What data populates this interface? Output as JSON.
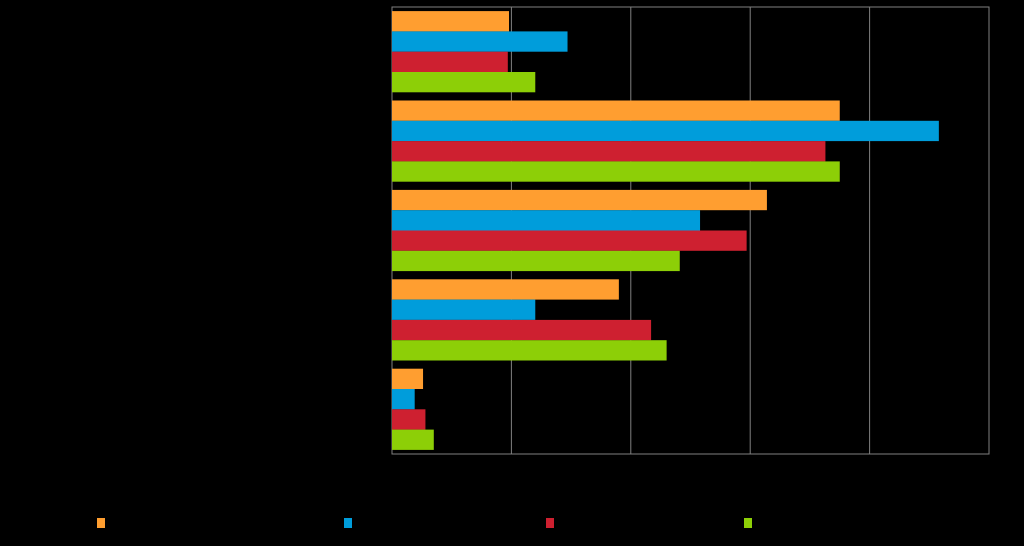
{
  "chart_data": {
    "type": "bar",
    "orientation": "horizontal",
    "categories": [
      "",
      "",
      "",
      "",
      ""
    ],
    "series": [
      {
        "color": "#FF9E30",
        "values": [
          9.8,
          37.5,
          31.4,
          19.0,
          2.6
        ]
      },
      {
        "color": "#009DDB",
        "values": [
          14.7,
          45.8,
          25.8,
          12.0,
          1.9
        ]
      },
      {
        "color": "#CE2030",
        "values": [
          9.7,
          36.3,
          29.7,
          21.7,
          2.8
        ]
      },
      {
        "color": "#8DCF07",
        "values": [
          12.0,
          37.5,
          24.1,
          23.0,
          3.5
        ]
      }
    ],
    "xlim": [
      0,
      50
    ],
    "x_gridlines": [
      10,
      20,
      30,
      40
    ],
    "grid": true,
    "legend": "bottom",
    "background": "#000000",
    "axis_color": "#808080"
  }
}
